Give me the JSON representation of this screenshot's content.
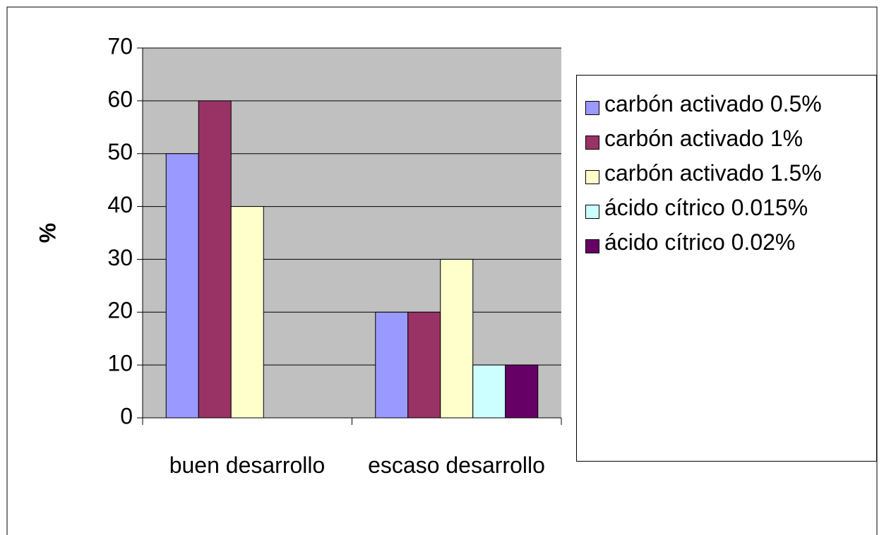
{
  "chart_data": {
    "type": "bar",
    "ylabel": "%",
    "categories": [
      "buen desarrollo",
      "escaso desarrollo"
    ],
    "series": [
      {
        "name": "carbón activado 0.5%",
        "color": "#9999ff",
        "values": [
          50,
          20
        ]
      },
      {
        "name": "carbón activado 1%",
        "color": "#993366",
        "values": [
          60,
          20
        ]
      },
      {
        "name": "carbón activado 1.5%",
        "color": "#ffffcc",
        "values": [
          40,
          30
        ]
      },
      {
        "name": "ácido cítrico 0.015%",
        "color": "#ccffff",
        "values": [
          null,
          10
        ]
      },
      {
        "name": "ácido cítrico 0.02%",
        "color": "#660066",
        "values": [
          null,
          10
        ]
      }
    ],
    "ylim": [
      0,
      70
    ],
    "yticks": [
      0,
      10,
      20,
      30,
      40,
      50,
      60,
      70
    ],
    "grid": true,
    "legend": "right"
  }
}
